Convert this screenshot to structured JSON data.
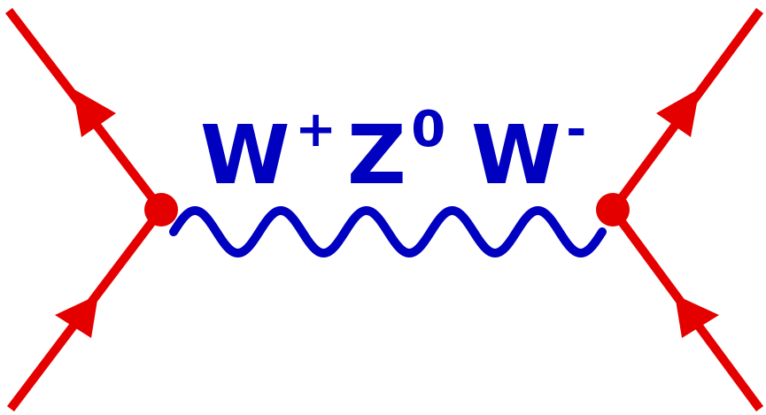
{
  "diagram": {
    "labels": [
      {
        "base": "W",
        "sup": "+"
      },
      {
        "base": "Z",
        "sup": "0"
      },
      {
        "base": "W",
        "sup": "-"
      }
    ]
  },
  "colors": {
    "fermion": "#e50000",
    "boson": "#0000c0",
    "background": "#ffffff"
  }
}
